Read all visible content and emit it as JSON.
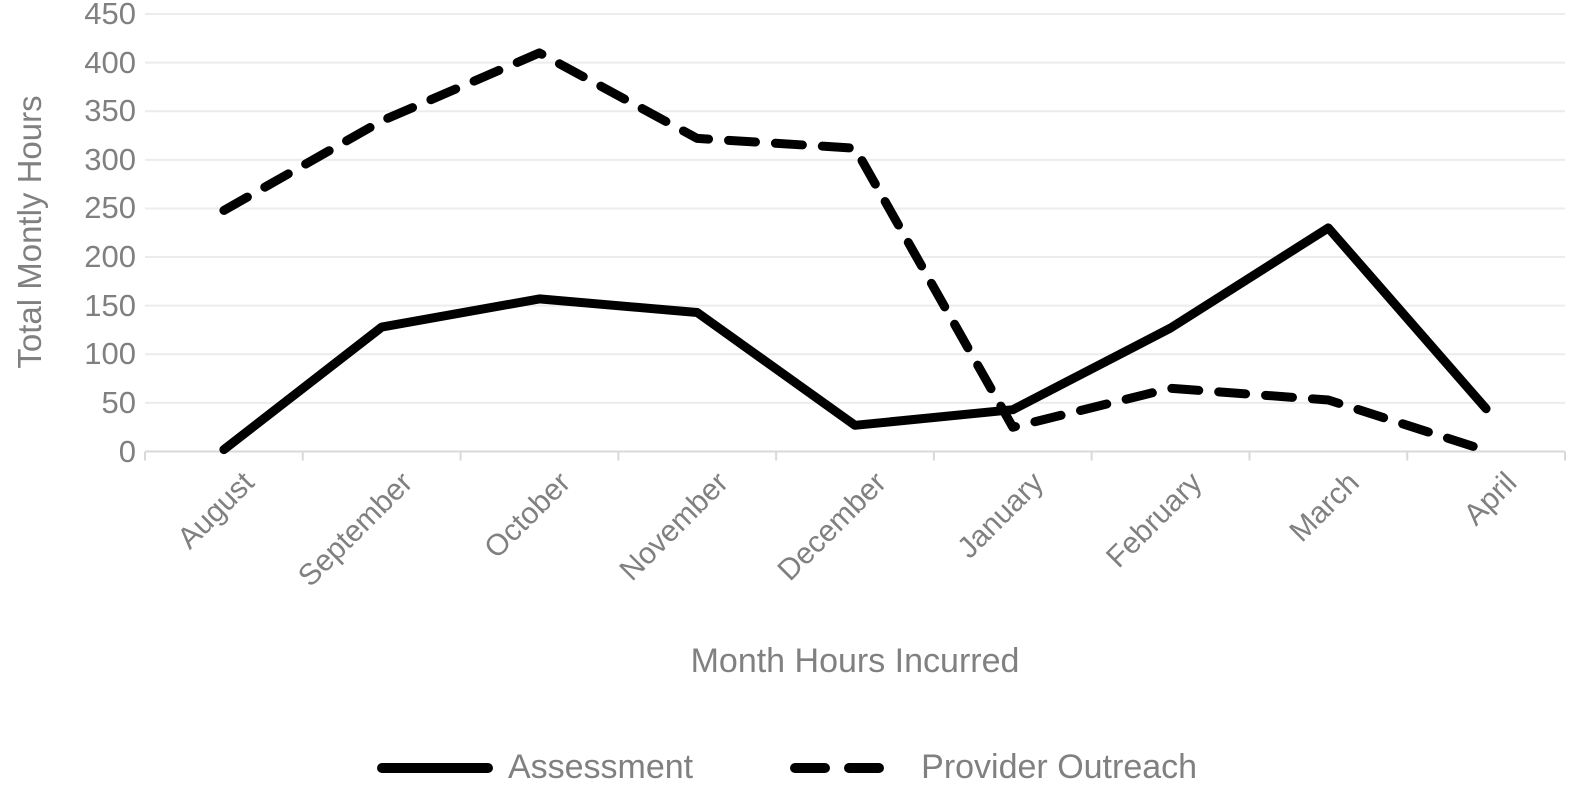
{
  "chart_data": {
    "type": "line",
    "title": "",
    "xlabel": "Month Hours Incurred",
    "ylabel": "Total Montly Hours",
    "categories": [
      "August",
      "September",
      "October",
      "November",
      "December",
      "January",
      "February",
      "March",
      "April"
    ],
    "series": [
      {
        "name": "Assessment",
        "line_style": "solid",
        "values": [
          2,
          128,
          157,
          143,
          27,
          43,
          127,
          230,
          44
        ]
      },
      {
        "name": "Provider Outreach",
        "line_style": "dashed",
        "values": [
          248,
          340,
          410,
          322,
          312,
          25,
          65,
          53,
          1
        ]
      }
    ],
    "ylim": [
      0,
      450
    ],
    "ytick_step": 50,
    "grid": true,
    "legend_position": "bottom",
    "line_color": "#000000",
    "text_color": "#808080",
    "gridline_color": "#ececec",
    "axis_line_color": "#d9d9d9"
  }
}
